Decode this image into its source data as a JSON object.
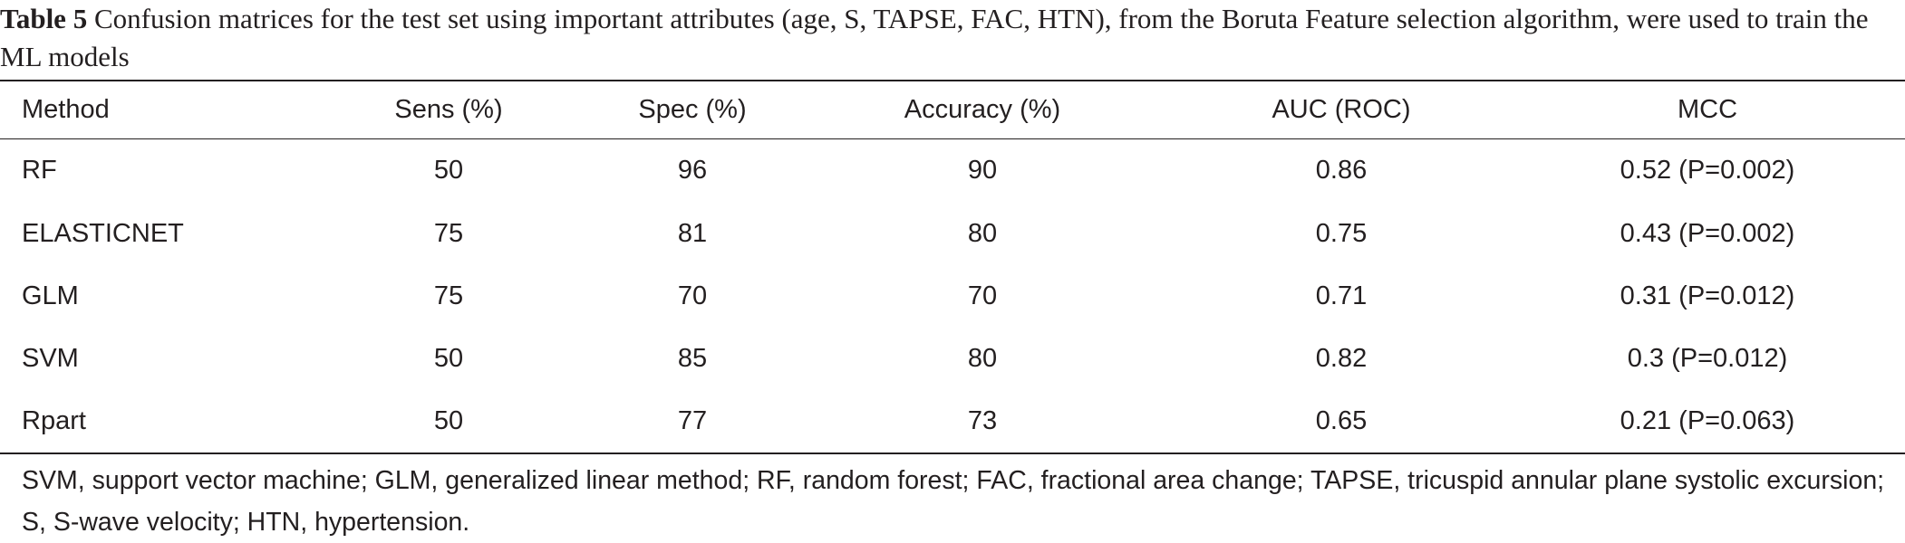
{
  "caption": {
    "label": "Table 5",
    "text": " Confusion matrices for the test set using important attributes (age, S, TAPSE, FAC, HTN), from the Boruta Feature selection algorithm, were used to train the ML models"
  },
  "table": {
    "headers": [
      "Method",
      "Sens (%)",
      "Spec (%)",
      "Accuracy (%)",
      "AUC (ROC)",
      "MCC"
    ],
    "rows": [
      [
        "RF",
        "50",
        "96",
        "90",
        "0.86",
        "0.52 (P=0.002)"
      ],
      [
        "ELASTICNET",
        "75",
        "81",
        "80",
        "0.75",
        "0.43 (P=0.002)"
      ],
      [
        "GLM",
        "75",
        "70",
        "70",
        "0.71",
        "0.31 (P=0.012)"
      ],
      [
        "SVM",
        "50",
        "85",
        "80",
        "0.82",
        "0.3 (P=0.012)"
      ],
      [
        "Rpart",
        "50",
        "77",
        "73",
        "0.65",
        "0.21 (P=0.063)"
      ]
    ]
  },
  "footnote": "SVM, support vector machine; GLM, generalized linear method; RF, random forest; FAC, fractional area change; TAPSE, tricuspid annular plane systolic excursion; S, S-wave velocity; HTN, hypertension."
}
